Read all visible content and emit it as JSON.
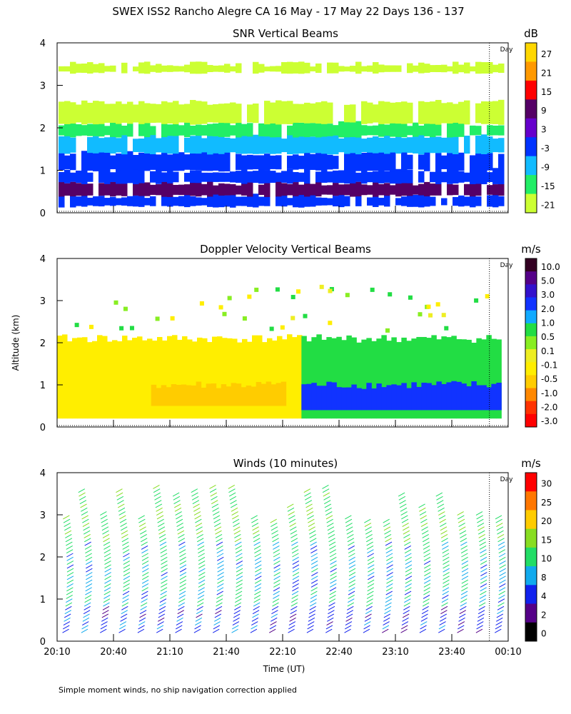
{
  "figure": {
    "title": "SWEX ISS2 Rancho Alegre CA  16 May - 17 May 22 Days 136 - 137",
    "footnote": "Simple moment winds, no ship navigation correction applied",
    "xlabel": "Time (UT)",
    "ylabel": "Altitude (km)",
    "day_label": "Day",
    "day_boundary_time": "00:00"
  },
  "chart_data": [
    {
      "type": "heatmap",
      "title": "SNR Vertical Beams",
      "colorbar_unit": "dB",
      "colorbar_labels": [
        "27",
        "21",
        "15",
        "9",
        "3",
        "-3",
        "-9",
        "-15",
        "-21"
      ],
      "colorbar_colors": [
        "#ffd700",
        "#ff9900",
        "#ff0000",
        "#550066",
        "#6600cc",
        "#0033ff",
        "#11bbff",
        "#22ee66",
        "#ccff33"
      ],
      "x_ticks": [
        "20:10",
        "20:40",
        "21:10",
        "21:40",
        "22:10",
        "22:40",
        "23:10",
        "23:40",
        "00:10"
      ],
      "x_tick_labels_shown": false,
      "y_ticks": [
        0,
        1,
        2,
        3,
        4
      ],
      "ylim": [
        0,
        4
      ],
      "bands": [
        {
          "alt": [
            0.15,
            0.4
          ],
          "value": -3
        },
        {
          "alt": [
            0.4,
            0.7
          ],
          "value": 9
        },
        {
          "alt": [
            0.7,
            1.0
          ],
          "value": -3
        },
        {
          "alt": [
            1.0,
            1.4
          ],
          "value": -3
        },
        {
          "alt": [
            1.4,
            1.8
          ],
          "value": -9
        },
        {
          "alt": [
            1.8,
            2.1
          ],
          "value": -15
        },
        {
          "alt": [
            2.1,
            2.6
          ],
          "value": -21
        },
        {
          "alt": [
            3.3,
            3.5
          ],
          "value": -21
        }
      ]
    },
    {
      "type": "heatmap",
      "title": "Doppler Velocity Vertical Beams",
      "colorbar_unit": "m/s",
      "colorbar_labels": [
        "10.0",
        "5.0",
        "3.0",
        "2.0",
        "1.0",
        "0.5",
        "0.1",
        "-0.1",
        "-0.5",
        "-1.0",
        "-2.0",
        "-3.0"
      ],
      "colorbar_colors": [
        "#330022",
        "#550088",
        "#3311cc",
        "#1133ff",
        "#11aaff",
        "#22dd44",
        "#88ee22",
        "#eeee22",
        "#ffee00",
        "#ffcc00",
        "#ff8800",
        "#ff3300",
        "#ff0000"
      ],
      "x_ticks": [
        "20:10",
        "20:40",
        "21:10",
        "21:40",
        "22:10",
        "22:40",
        "23:10",
        "23:40",
        "00:10"
      ],
      "x_tick_labels_shown": false,
      "y_ticks": [
        0,
        1,
        2,
        3,
        4
      ],
      "ylim": [
        0,
        4
      ],
      "regions": [
        {
          "time": [
            "20:10",
            "22:20"
          ],
          "alt": [
            0.2,
            2.1
          ],
          "value": -0.5
        },
        {
          "time": [
            "21:00",
            "22:10"
          ],
          "alt": [
            0.5,
            1.0
          ],
          "value": -1.0
        },
        {
          "time": [
            "22:20",
            "00:05"
          ],
          "alt": [
            0.2,
            2.1
          ],
          "value": 0.5
        },
        {
          "time": [
            "22:20",
            "00:05"
          ],
          "alt": [
            0.4,
            1.0
          ],
          "value": 2.0
        }
      ]
    },
    {
      "type": "barbs",
      "title": "Winds (10 minutes)",
      "colorbar_unit": "m/s",
      "colorbar_labels": [
        "30",
        "25",
        "20",
        "15",
        "10",
        "8",
        "4",
        "2",
        "0"
      ],
      "colorbar_colors": [
        "#ff0000",
        "#ff7700",
        "#ffcc00",
        "#88dd22",
        "#22dd66",
        "#11aaee",
        "#1122ee",
        "#550088",
        "#000000"
      ],
      "x_ticks": [
        "20:10",
        "20:40",
        "21:10",
        "21:40",
        "22:10",
        "22:40",
        "23:10",
        "23:40",
        "00:10"
      ],
      "x_tick_labels_shown": true,
      "y_ticks": [
        0,
        1,
        2,
        3,
        4
      ],
      "ylim": [
        0,
        4
      ],
      "interval_minutes": 10,
      "low_level_speed": 6,
      "mid_level_speed": 10,
      "upper_level_speed": 14
    }
  ]
}
